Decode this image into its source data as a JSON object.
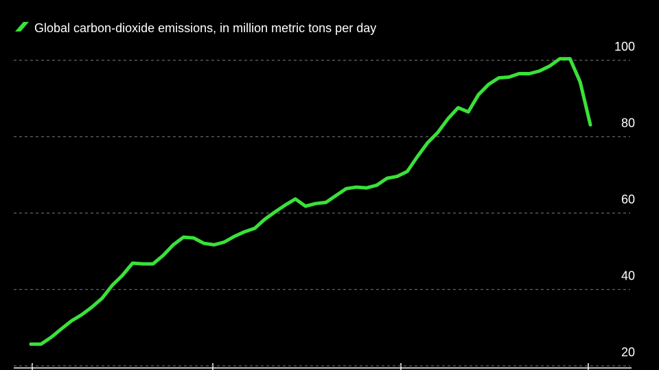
{
  "chart_data": {
    "type": "line",
    "categories": [
      null,
      null,
      null,
      null,
      null,
      null,
      null,
      null,
      null,
      null,
      null,
      null,
      null,
      null,
      null,
      null,
      null,
      null,
      null,
      null,
      null,
      null,
      null,
      null,
      null,
      null,
      null,
      null,
      null,
      null,
      null,
      null,
      null,
      null,
      null,
      null,
      null,
      null,
      null,
      null,
      null,
      null,
      null,
      null,
      null,
      null,
      null,
      null,
      null,
      null,
      null,
      null,
      null,
      null,
      null,
      null
    ],
    "series": [
      {
        "name": "Global carbon-dioxide emissions, in million metric tons per day",
        "color": "#3ae13a",
        "values": [
          25.7,
          25.7,
          27.5,
          29.7,
          31.8,
          33.4,
          35.4,
          37.7,
          41.1,
          43.7,
          46.9,
          46.7,
          46.7,
          48.9,
          51.7,
          53.7,
          53.5,
          52.1,
          51.7,
          52.4,
          53.9,
          55.1,
          56.0,
          58.4,
          60.3,
          62.1,
          63.7,
          61.8,
          62.5,
          62.8,
          64.6,
          66.4,
          66.8,
          66.6,
          67.3,
          69.1,
          69.6,
          70.9,
          74.8,
          78.4,
          81.1,
          84.7,
          87.6,
          86.5,
          91.0,
          93.7,
          95.4,
          95.6,
          96.5,
          96.5,
          97.2,
          98.5,
          100.4,
          100.4,
          94.3,
          83.1
        ]
      }
    ],
    "ylim": [
      20,
      100
    ],
    "yticks": [
      20,
      40,
      60,
      80,
      100
    ],
    "grid": true
  }
}
